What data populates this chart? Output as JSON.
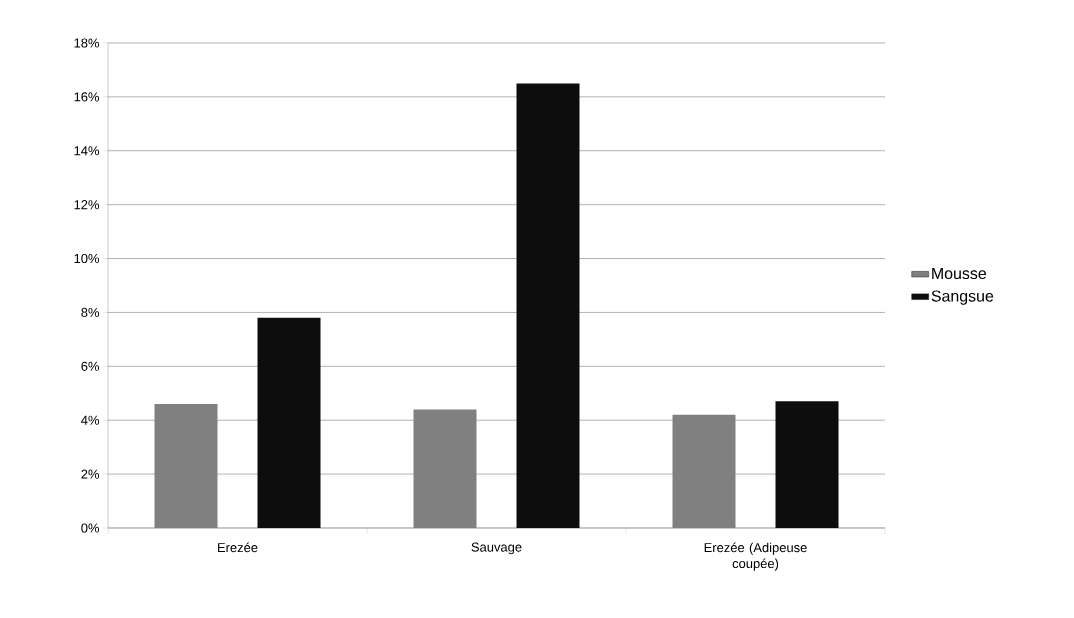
{
  "chart_data": {
    "type": "bar",
    "categories": [
      "Erezée",
      "Sauvage",
      "Erezée (Adipeuse coupée)"
    ],
    "series": [
      {
        "name": "Mousse",
        "color": "#808080",
        "values": [
          4.6,
          4.4,
          4.2
        ]
      },
      {
        "name": "Sangsue",
        "color": "#0d0d0d",
        "values": [
          7.8,
          16.5,
          4.7
        ]
      }
    ],
    "ylim": [
      0,
      18
    ],
    "yticks": [
      {
        "value": 0,
        "label": "0%"
      },
      {
        "value": 2,
        "label": "2%"
      },
      {
        "value": 4,
        "label": "4%"
      },
      {
        "value": 6,
        "label": "6%"
      },
      {
        "value": 8,
        "label": "8%"
      },
      {
        "value": 10,
        "label": "10%"
      },
      {
        "value": 12,
        "label": "12%"
      },
      {
        "value": 14,
        "label": "14%"
      },
      {
        "value": 16,
        "label": "16%"
      },
      {
        "value": 18,
        "label": "18%"
      }
    ],
    "grid": "y",
    "legend": "right"
  }
}
